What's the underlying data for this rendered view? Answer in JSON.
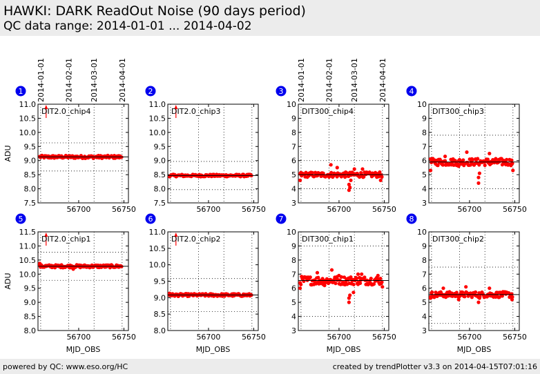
{
  "header": {
    "title": "HAWKI: DARK ReadOut Noise (90 days period)",
    "subtitle": "QC data range: 2014-01-01 ... 2014-04-02"
  },
  "footer": {
    "left": "powered by QC: www.eso.org/HC",
    "right": "created by trendPlotter v3.3 on 2014-04-15T07:01:16"
  },
  "colors": {
    "marker": "#ff0000",
    "badge": "#0000ee",
    "panel_background": "#ffffff",
    "header_background": "#ececec"
  },
  "date_axis": {
    "labels": [
      "2014-01-01",
      "2014-02-01",
      "2014-03-01",
      "2014-04-01"
    ],
    "positions": [
      56658,
      56689,
      56717,
      56748
    ]
  },
  "chart_data": [
    {
      "type": "scatter",
      "index": "1",
      "label": "DIT2.0_chip4",
      "xlim": [
        56655,
        56755
      ],
      "ylim": [
        7.5,
        11.0
      ],
      "yticks": [
        "7.5",
        "8.0",
        "8.5",
        "9.0",
        "9.5",
        "10.0",
        "10.5",
        "11.0"
      ],
      "xticks": [
        "56700",
        "56750"
      ],
      "xtick_values": [
        56700,
        56750
      ],
      "xlabel": "",
      "ylabel": "ADU",
      "median": 9.13,
      "band": [
        8.63,
        9.63
      ],
      "series_level": 9.13,
      "series_spread": 0.05,
      "outliers": [],
      "offscale": {
        "x": 56664,
        "direction": "up"
      }
    },
    {
      "type": "scatter",
      "index": "2",
      "label": "DIT2.0_chip3",
      "xlim": [
        56655,
        56755
      ],
      "ylim": [
        7.5,
        11.0
      ],
      "yticks": [
        "7.5",
        "8.0",
        "8.5",
        "9.0",
        "9.5",
        "10.0",
        "10.5",
        "11.0"
      ],
      "xticks": [
        "56700",
        "56750"
      ],
      "xtick_values": [
        56700,
        56750
      ],
      "xlabel": "",
      "ylabel": "",
      "median": 8.47,
      "band": [
        7.97,
        8.97
      ],
      "series_level": 8.47,
      "series_spread": 0.04,
      "outliers": [],
      "offscale": {
        "x": 56664,
        "direction": "up"
      }
    },
    {
      "type": "scatter",
      "index": "3",
      "label": "DIT300_chip4",
      "xlim": [
        56655,
        56755
      ],
      "ylim": [
        3,
        10
      ],
      "yticks": [
        "3",
        "4",
        "5",
        "6",
        "7",
        "8",
        "9",
        "10"
      ],
      "xticks": [
        "56700",
        "56750"
      ],
      "xtick_values": [
        56700,
        56750
      ],
      "xlabel": "",
      "ylabel": "",
      "median": 5.0,
      "band": [
        4.0,
        6.0
      ],
      "series_level": 5.0,
      "series_spread": 0.18,
      "outliers": [
        [
          56657,
          4.6
        ],
        [
          56691,
          5.7
        ],
        [
          56698,
          5.5
        ],
        [
          56711,
          4.3
        ],
        [
          56711,
          3.9
        ],
        [
          56712,
          4.1
        ],
        [
          56713,
          4.6
        ],
        [
          56717,
          5.4
        ],
        [
          56726,
          5.4
        ],
        [
          56746,
          4.6
        ]
      ],
      "offscale": null
    },
    {
      "type": "scatter",
      "index": "4",
      "label": "DIT300_chip3",
      "xlim": [
        56655,
        56755
      ],
      "ylim": [
        3,
        10
      ],
      "yticks": [
        "3",
        "4",
        "5",
        "6",
        "7",
        "8",
        "9",
        "10"
      ],
      "xticks": [
        "56700",
        "56750"
      ],
      "xtick_values": [
        56700,
        56750
      ],
      "xlabel": "",
      "ylabel": "",
      "median": 5.9,
      "band": [
        4.0,
        7.8
      ],
      "series_level": 5.9,
      "series_spread": 0.25,
      "outliers": [
        [
          56657,
          5.3
        ],
        [
          56673,
          6.3
        ],
        [
          56688,
          5.6
        ],
        [
          56697,
          6.6
        ],
        [
          56702,
          6.1
        ],
        [
          56710,
          4.8
        ],
        [
          56710,
          4.4
        ],
        [
          56711,
          5.1
        ],
        [
          56722,
          6.5
        ],
        [
          56748,
          5.3
        ]
      ],
      "offscale": null
    },
    {
      "type": "scatter",
      "index": "5",
      "label": "DIT2.0_chip1",
      "xlim": [
        56655,
        56755
      ],
      "ylim": [
        8.0,
        11.5
      ],
      "yticks": [
        "8.0",
        "8.5",
        "9.0",
        "9.5",
        "10.0",
        "10.5",
        "11.0",
        "11.5"
      ],
      "xticks": [
        "56700",
        "56750"
      ],
      "xtick_values": [
        56700,
        56750
      ],
      "xlabel": "MJD_OBS",
      "ylabel": "ADU",
      "median": 10.28,
      "band": [
        9.78,
        10.78
      ],
      "series_level": 10.28,
      "series_spread": 0.05,
      "outliers": [
        [
          56657,
          10.38
        ],
        [
          56694,
          10.18
        ]
      ],
      "offscale": {
        "x": 56664,
        "direction": "up"
      }
    },
    {
      "type": "scatter",
      "index": "6",
      "label": "DIT2.0_chip2",
      "xlim": [
        56655,
        56755
      ],
      "ylim": [
        8.0,
        11.0
      ],
      "yticks": [
        "8.0",
        "8.5",
        "9.0",
        "9.5",
        "10.0",
        "10.5",
        "11.0"
      ],
      "xticks": [
        "56700",
        "56750"
      ],
      "xtick_values": [
        56700,
        56750
      ],
      "xlabel": "MJD_OBS",
      "ylabel": "",
      "median": 9.08,
      "band": [
        8.58,
        9.58
      ],
      "series_level": 9.08,
      "series_spread": 0.04,
      "outliers": [
        [
          56657,
          9.13
        ]
      ],
      "offscale": {
        "x": 56664,
        "direction": "up"
      }
    },
    {
      "type": "scatter",
      "index": "7",
      "label": "DIT300_chip1",
      "xlim": [
        56655,
        56755
      ],
      "ylim": [
        3,
        10
      ],
      "yticks": [
        "3",
        "4",
        "5",
        "6",
        "7",
        "8",
        "9",
        "10"
      ],
      "xticks": [
        "56700",
        "56750"
      ],
      "xtick_values": [
        56700,
        56750
      ],
      "xlabel": "MJD_OBS",
      "ylabel": "",
      "median": 6.55,
      "band": [
        4.0,
        9.0
      ],
      "series_level": 6.55,
      "series_spread": 0.3,
      "outliers": [
        [
          56657,
          6.0
        ],
        [
          56676,
          7.1
        ],
        [
          56684,
          6.2
        ],
        [
          56692,
          7.3
        ],
        [
          56700,
          6.9
        ],
        [
          56711,
          5.3
        ],
        [
          56711,
          5.0
        ],
        [
          56712,
          5.5
        ],
        [
          56716,
          5.7
        ],
        [
          56721,
          7.0
        ],
        [
          56725,
          7.0
        ],
        [
          56743,
          6.9
        ],
        [
          56748,
          6.1
        ]
      ],
      "offscale": null
    },
    {
      "type": "scatter",
      "index": "8",
      "label": "DIT300_chip2",
      "xlim": [
        56655,
        56755
      ],
      "ylim": [
        3,
        10
      ],
      "yticks": [
        "3",
        "4",
        "5",
        "6",
        "7",
        "8",
        "9",
        "10"
      ],
      "xticks": [
        "56700",
        "56750"
      ],
      "xtick_values": [
        56700,
        56750
      ],
      "xlabel": "MJD_OBS",
      "ylabel": "",
      "median": 5.55,
      "band": [
        3.5,
        7.5
      ],
      "series_level": 5.55,
      "series_spread": 0.2,
      "outliers": [
        [
          56657,
          5.3
        ],
        [
          56671,
          6.0
        ],
        [
          56688,
          5.2
        ],
        [
          56696,
          6.1
        ],
        [
          56710,
          5.0
        ],
        [
          56711,
          5.3
        ],
        [
          56722,
          6.0
        ],
        [
          56747,
          5.2
        ]
      ],
      "offscale": null
    }
  ]
}
